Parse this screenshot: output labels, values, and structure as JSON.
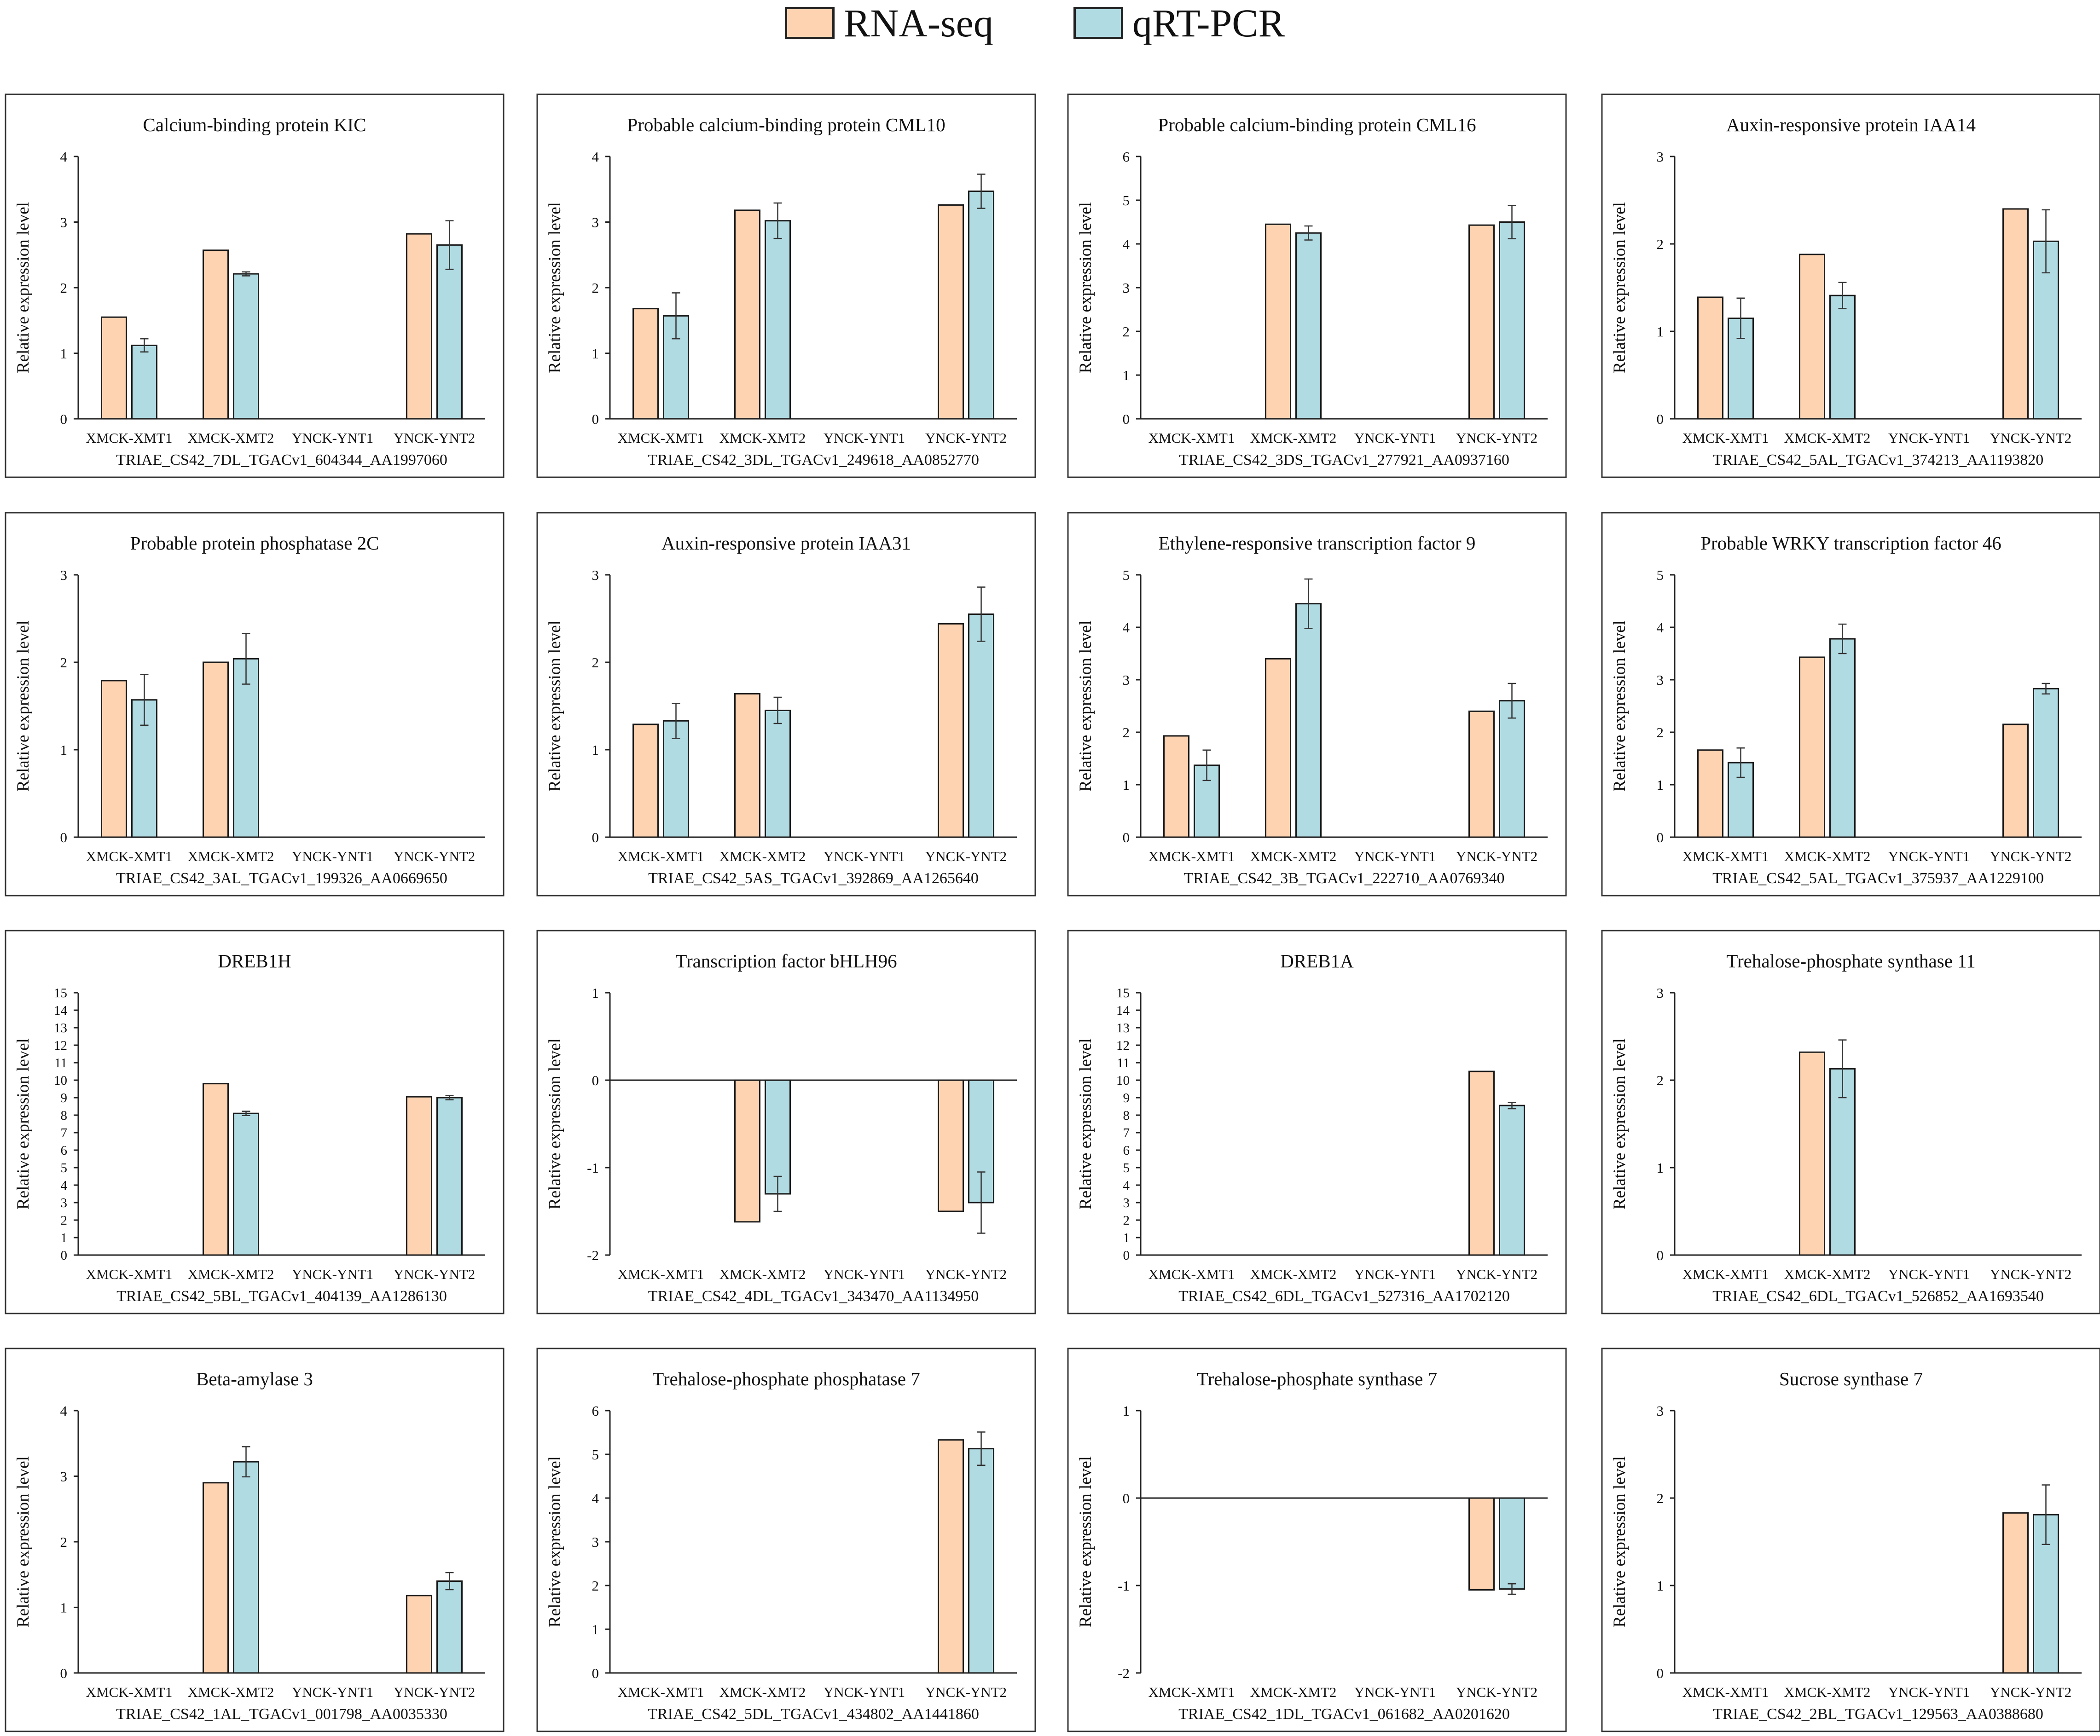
{
  "legend": {
    "rna_label": "RNA-seq",
    "qpcr_label": "qRT-PCR"
  },
  "colors": {
    "rna": "#fdd3b2",
    "qpcr": "#b1dbe3",
    "bar_stroke": "#1a1a1a",
    "axis": "#222222",
    "panel_border": "#333333"
  },
  "chart_data": [
    {
      "type": "bar",
      "title": "Calcium-binding protein KIC",
      "xlabel": "TRIAE_CS42_7DL_TGACv1_604344_AA1997060",
      "ylabel": "Relative expression level",
      "categories": [
        "XMCK-XMT1",
        "XMCK-XMT2",
        "YNCK-YNT1",
        "YNCK-YNT2"
      ],
      "ylim": [
        0,
        4
      ],
      "yticks": [
        0,
        1,
        2,
        3,
        4
      ],
      "series": [
        {
          "name": "RNA-seq",
          "values": [
            1.55,
            2.57,
            null,
            2.82
          ]
        },
        {
          "name": "qRT-PCR",
          "values": [
            1.12,
            2.21,
            null,
            2.65
          ],
          "errors": [
            0.1,
            0.03,
            null,
            0.37
          ]
        }
      ]
    },
    {
      "type": "bar",
      "title": "Probable calcium-binding protein CML10",
      "xlabel": "TRIAE_CS42_3DL_TGACv1_249618_AA0852770",
      "ylabel": "Relative expression level",
      "categories": [
        "XMCK-XMT1",
        "XMCK-XMT2",
        "YNCK-YNT1",
        "YNCK-YNT2"
      ],
      "ylim": [
        0,
        4
      ],
      "yticks": [
        0,
        1,
        2,
        3,
        4
      ],
      "series": [
        {
          "name": "RNA-seq",
          "values": [
            1.68,
            3.18,
            null,
            3.26
          ]
        },
        {
          "name": "qRT-PCR",
          "values": [
            1.57,
            3.02,
            null,
            3.47
          ],
          "errors": [
            0.35,
            0.27,
            null,
            0.26
          ]
        }
      ]
    },
    {
      "type": "bar",
      "title": "Probable calcium-binding protein CML16",
      "xlabel": "TRIAE_CS42_3DS_TGACv1_277921_AA0937160",
      "ylabel": "Relative expression level",
      "categories": [
        "XMCK-XMT1",
        "XMCK-XMT2",
        "YNCK-YNT1",
        "YNCK-YNT2"
      ],
      "ylim": [
        0,
        6
      ],
      "yticks": [
        0,
        1,
        2,
        3,
        4,
        5,
        6
      ],
      "series": [
        {
          "name": "RNA-seq",
          "values": [
            null,
            4.45,
            null,
            4.43
          ]
        },
        {
          "name": "qRT-PCR",
          "values": [
            null,
            4.25,
            null,
            4.5
          ],
          "errors": [
            null,
            0.16,
            null,
            0.38
          ]
        }
      ]
    },
    {
      "type": "bar",
      "title": "Auxin-responsive protein IAA14",
      "xlabel": "TRIAE_CS42_5AL_TGACv1_374213_AA1193820",
      "ylabel": "Relative expression level",
      "categories": [
        "XMCK-XMT1",
        "XMCK-XMT2",
        "YNCK-YNT1",
        "YNCK-YNT2"
      ],
      "ylim": [
        0,
        3
      ],
      "yticks": [
        0,
        1,
        2,
        3
      ],
      "series": [
        {
          "name": "RNA-seq",
          "values": [
            1.39,
            1.88,
            null,
            2.4
          ]
        },
        {
          "name": "qRT-PCR",
          "values": [
            1.15,
            1.41,
            null,
            2.03
          ],
          "errors": [
            0.23,
            0.15,
            null,
            0.36
          ]
        }
      ]
    },
    {
      "type": "bar",
      "title": "Probable protein phosphatase 2C",
      "xlabel": "TRIAE_CS42_3AL_TGACv1_199326_AA0669650",
      "ylabel": "Relative expression level",
      "categories": [
        "XMCK-XMT1",
        "XMCK-XMT2",
        "YNCK-YNT1",
        "YNCK-YNT2"
      ],
      "ylim": [
        0,
        3
      ],
      "yticks": [
        0,
        1,
        2,
        3
      ],
      "series": [
        {
          "name": "RNA-seq",
          "values": [
            1.79,
            2.0,
            null,
            null
          ]
        },
        {
          "name": "qRT-PCR",
          "values": [
            1.57,
            2.04,
            null,
            null
          ],
          "errors": [
            0.29,
            0.29,
            null,
            null
          ]
        }
      ]
    },
    {
      "type": "bar",
      "title": "Auxin-responsive protein IAA31",
      "xlabel": "TRIAE_CS42_5AS_TGACv1_392869_AA1265640",
      "ylabel": "Relative expression level",
      "categories": [
        "XMCK-XMT1",
        "XMCK-XMT2",
        "YNCK-YNT1",
        "YNCK-YNT2"
      ],
      "ylim": [
        0,
        3
      ],
      "yticks": [
        0,
        1,
        2,
        3
      ],
      "series": [
        {
          "name": "RNA-seq",
          "values": [
            1.29,
            1.64,
            null,
            2.44
          ]
        },
        {
          "name": "qRT-PCR",
          "values": [
            1.33,
            1.45,
            null,
            2.55
          ],
          "errors": [
            0.2,
            0.15,
            null,
            0.31
          ]
        }
      ]
    },
    {
      "type": "bar",
      "title": "Ethylene-responsive transcription factor 9",
      "xlabel": "TRIAE_CS42_3B_TGACv1_222710_AA0769340",
      "ylabel": "Relative expression level",
      "categories": [
        "XMCK-XMT1",
        "XMCK-XMT2",
        "YNCK-YNT1",
        "YNCK-YNT2"
      ],
      "ylim": [
        0,
        5
      ],
      "yticks": [
        0,
        1,
        2,
        3,
        4,
        5
      ],
      "series": [
        {
          "name": "RNA-seq",
          "values": [
            1.93,
            3.4,
            null,
            2.4
          ]
        },
        {
          "name": "qRT-PCR",
          "values": [
            1.37,
            4.45,
            null,
            2.6
          ],
          "errors": [
            0.29,
            0.47,
            null,
            0.33
          ]
        }
      ]
    },
    {
      "type": "bar",
      "title": "Probable WRKY transcription factor 46",
      "xlabel": "TRIAE_CS42_5AL_TGACv1_375937_AA1229100",
      "ylabel": "Relative expression level",
      "categories": [
        "XMCK-XMT1",
        "XMCK-XMT2",
        "YNCK-YNT1",
        "YNCK-YNT2"
      ],
      "ylim": [
        0,
        5
      ],
      "yticks": [
        0,
        1,
        2,
        3,
        4,
        5
      ],
      "series": [
        {
          "name": "RNA-seq",
          "values": [
            1.66,
            3.43,
            null,
            2.15
          ]
        },
        {
          "name": "qRT-PCR",
          "values": [
            1.42,
            3.78,
            null,
            2.83
          ],
          "errors": [
            0.28,
            0.28,
            null,
            0.1
          ]
        }
      ]
    },
    {
      "type": "bar",
      "title": "DREB1H",
      "xlabel": "TRIAE_CS42_5BL_TGACv1_404139_AA1286130",
      "ylabel": "Relative expression level",
      "categories": [
        "XMCK-XMT1",
        "XMCK-XMT2",
        "YNCK-YNT1",
        "YNCK-YNT2"
      ],
      "ylim": [
        0,
        15
      ],
      "yticks": [
        0,
        1,
        2,
        3,
        4,
        5,
        6,
        7,
        8,
        9,
        10,
        11,
        12,
        13,
        14,
        15
      ],
      "series": [
        {
          "name": "RNA-seq",
          "values": [
            null,
            9.8,
            null,
            9.05
          ]
        },
        {
          "name": "qRT-PCR",
          "values": [
            null,
            8.1,
            null,
            9.0
          ],
          "errors": [
            null,
            0.12,
            null,
            0.12
          ]
        }
      ]
    },
    {
      "type": "bar",
      "title": "Transcription factor bHLH96",
      "xlabel": "TRIAE_CS42_4DL_TGACv1_343470_AA1134950",
      "ylabel": "Relative expression level",
      "categories": [
        "XMCK-XMT1",
        "XMCK-XMT2",
        "YNCK-YNT1",
        "YNCK-YNT2"
      ],
      "ylim": [
        -2,
        1
      ],
      "yticks": [
        -2,
        -1,
        0,
        1
      ],
      "series": [
        {
          "name": "RNA-seq",
          "values": [
            null,
            -1.62,
            null,
            -1.5
          ]
        },
        {
          "name": "qRT-PCR",
          "values": [
            null,
            -1.3,
            null,
            -1.4
          ],
          "errors": [
            null,
            0.2,
            null,
            0.35
          ]
        }
      ]
    },
    {
      "type": "bar",
      "title": "DREB1A",
      "xlabel": "TRIAE_CS42_6DL_TGACv1_527316_AA1702120",
      "ylabel": "Relative expression level",
      "categories": [
        "XMCK-XMT1",
        "XMCK-XMT2",
        "YNCK-YNT1",
        "YNCK-YNT2"
      ],
      "ylim": [
        0,
        15
      ],
      "yticks": [
        0,
        1,
        2,
        3,
        4,
        5,
        6,
        7,
        8,
        9,
        10,
        11,
        12,
        13,
        14,
        15
      ],
      "series": [
        {
          "name": "RNA-seq",
          "values": [
            null,
            null,
            null,
            10.5
          ]
        },
        {
          "name": "qRT-PCR",
          "values": [
            null,
            null,
            null,
            8.55
          ],
          "errors": [
            null,
            null,
            null,
            0.18
          ]
        }
      ]
    },
    {
      "type": "bar",
      "title": "Trehalose-phosphate synthase 11",
      "xlabel": "TRIAE_CS42_6DL_TGACv1_526852_AA1693540",
      "ylabel": "Relative expression level",
      "categories": [
        "XMCK-XMT1",
        "XMCK-XMT2",
        "YNCK-YNT1",
        "YNCK-YNT2"
      ],
      "ylim": [
        0,
        3
      ],
      "yticks": [
        0,
        1,
        2,
        3
      ],
      "series": [
        {
          "name": "RNA-seq",
          "values": [
            null,
            2.32,
            null,
            null
          ]
        },
        {
          "name": "qRT-PCR",
          "values": [
            null,
            2.13,
            null,
            null
          ],
          "errors": [
            null,
            0.33,
            null,
            null
          ]
        }
      ]
    },
    {
      "type": "bar",
      "title": "Beta-amylase 3",
      "xlabel": "TRIAE_CS42_1AL_TGACv1_001798_AA0035330",
      "ylabel": "Relative expression level",
      "categories": [
        "XMCK-XMT1",
        "XMCK-XMT2",
        "YNCK-YNT1",
        "YNCK-YNT2"
      ],
      "ylim": [
        0,
        4
      ],
      "yticks": [
        0,
        1,
        2,
        3,
        4
      ],
      "series": [
        {
          "name": "RNA-seq",
          "values": [
            null,
            2.9,
            null,
            1.18
          ]
        },
        {
          "name": "qRT-PCR",
          "values": [
            null,
            3.22,
            null,
            1.4
          ],
          "errors": [
            null,
            0.23,
            null,
            0.13
          ]
        }
      ]
    },
    {
      "type": "bar",
      "title": "Trehalose-phosphate phosphatase 7",
      "xlabel": "TRIAE_CS42_5DL_TGACv1_434802_AA1441860",
      "ylabel": "Relative expression level",
      "categories": [
        "XMCK-XMT1",
        "XMCK-XMT2",
        "YNCK-YNT1",
        "YNCK-YNT2"
      ],
      "ylim": [
        0,
        6
      ],
      "yticks": [
        0,
        1,
        2,
        3,
        4,
        5,
        6
      ],
      "series": [
        {
          "name": "RNA-seq",
          "values": [
            null,
            null,
            null,
            5.33
          ]
        },
        {
          "name": "qRT-PCR",
          "values": [
            null,
            null,
            null,
            5.13
          ],
          "errors": [
            null,
            null,
            null,
            0.38
          ]
        }
      ]
    },
    {
      "type": "bar",
      "title": "Trehalose-phosphate synthase 7",
      "xlabel": "TRIAE_CS42_1DL_TGACv1_061682_AA0201620",
      "ylabel": "Relative expression level",
      "categories": [
        "XMCK-XMT1",
        "XMCK-XMT2",
        "YNCK-YNT1",
        "YNCK-YNT2"
      ],
      "ylim": [
        -2,
        1
      ],
      "yticks": [
        -2,
        -1,
        0,
        1
      ],
      "series": [
        {
          "name": "RNA-seq",
          "values": [
            null,
            null,
            null,
            -1.05
          ]
        },
        {
          "name": "qRT-PCR",
          "values": [
            null,
            null,
            null,
            -1.04
          ],
          "errors": [
            null,
            null,
            null,
            0.06
          ]
        }
      ]
    },
    {
      "type": "bar",
      "title": "Sucrose synthase 7",
      "xlabel": "TRIAE_CS42_2BL_TGACv1_129563_AA0388680",
      "ylabel": "Relative expression level",
      "categories": [
        "XMCK-XMT1",
        "XMCK-XMT2",
        "YNCK-YNT1",
        "YNCK-YNT2"
      ],
      "ylim": [
        0,
        3
      ],
      "yticks": [
        0,
        1,
        2,
        3
      ],
      "series": [
        {
          "name": "RNA-seq",
          "values": [
            null,
            null,
            null,
            1.83
          ]
        },
        {
          "name": "qRT-PCR",
          "values": [
            null,
            null,
            null,
            1.81
          ],
          "errors": [
            null,
            null,
            null,
            0.34
          ]
        }
      ]
    }
  ]
}
